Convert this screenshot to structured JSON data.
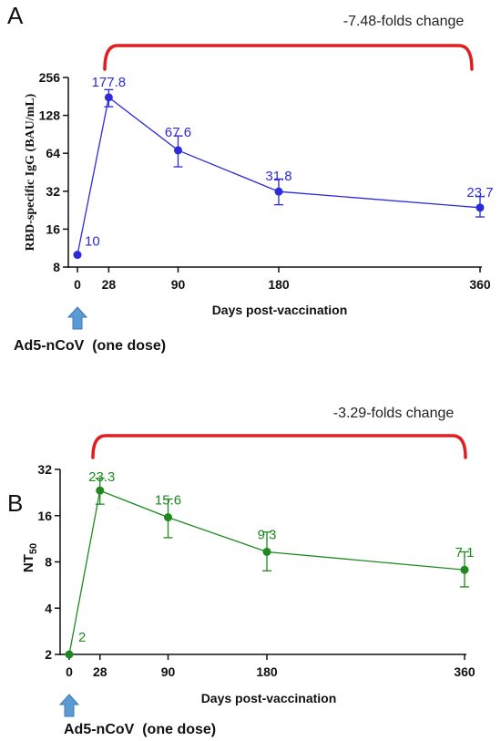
{
  "chart_data": [
    {
      "panel": "A",
      "type": "line",
      "ylabel": "RBD-specific IgG (BAU/mL)",
      "xlabel": "Days post-vaccination",
      "yscale": "log2",
      "ylim": [
        8,
        256
      ],
      "yticks": [
        "8",
        "16",
        "32",
        "64",
        "128",
        "256"
      ],
      "xticks": [
        "0",
        "28",
        "90",
        "180",
        "360"
      ],
      "xlim": [
        0,
        360
      ],
      "color": "#2b2bd9",
      "x": [
        0,
        28,
        90,
        180,
        360
      ],
      "values": [
        10,
        177.8,
        67.6,
        31.8,
        23.7
      ],
      "labels": [
        "10",
        "177.8",
        "67.6",
        "31.8",
        "23.7"
      ],
      "err_low": [
        10,
        150,
        50,
        25,
        20
      ],
      "err_high": [
        10,
        205,
        88,
        40,
        29
      ],
      "bracket_text": "-7.48-folds change",
      "bracket_color": "#e02020",
      "vaccine_label": "Ad5-nCoV  (one dose)",
      "arrow_color": "#5b9bd5"
    },
    {
      "panel": "B",
      "type": "line",
      "ylabel": "NT50",
      "xlabel": "Days post-vaccination",
      "yscale": "log2",
      "ylim": [
        2,
        32
      ],
      "yticks": [
        "2",
        "4",
        "8",
        "16",
        "32"
      ],
      "xticks": [
        "0",
        "28",
        "90",
        "180",
        "360"
      ],
      "xlim": [
        0,
        360
      ],
      "color": "#1e8a1e",
      "x": [
        0,
        28,
        90,
        180,
        360
      ],
      "values": [
        2,
        23.3,
        15.6,
        9.3,
        7.1
      ],
      "labels": [
        "2",
        "23.3",
        "15.6",
        "9.3",
        "7.1"
      ],
      "err_low": [
        2,
        19,
        11.5,
        7,
        5.5
      ],
      "err_high": [
        2,
        28,
        20.5,
        12.5,
        9.3
      ],
      "bracket_text": "-3.29-folds change",
      "bracket_color": "#e02020",
      "vaccine_label": "Ad5-nCoV  (one dose)",
      "arrow_color": "#5b9bd5"
    }
  ]
}
